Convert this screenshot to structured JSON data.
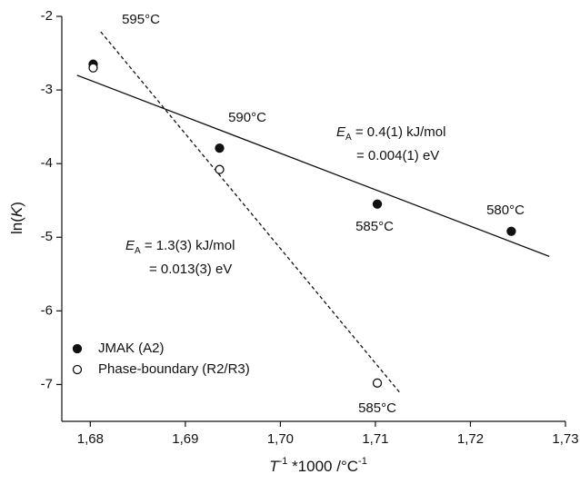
{
  "chart_data": {
    "type": "scatter",
    "xlabel": {
      "symbol": "T",
      "sup": "-1",
      "text": " *1000 /°C",
      "sup2": "-1"
    },
    "ylabel": {
      "pre": "ln(",
      "symbol": "K",
      "post": ")"
    },
    "xlim": [
      1.677,
      1.73
    ],
    "ylim": [
      -7.5,
      -2
    ],
    "xticks": [
      {
        "value": 1.68,
        "label": "1,68"
      },
      {
        "value": 1.69,
        "label": "1,69"
      },
      {
        "value": 1.7,
        "label": "1,70"
      },
      {
        "value": 1.71,
        "label": "1,71"
      },
      {
        "value": 1.72,
        "label": "1,72"
      },
      {
        "value": 1.73,
        "label": "1,73"
      }
    ],
    "yticks": [
      -2,
      -3,
      -4,
      -5,
      -6,
      -7
    ],
    "legend": "lower left",
    "series": [
      {
        "name": "JMAK (A2)",
        "color": "#111111",
        "marker": "filled",
        "x": [
          1.6803,
          1.6936,
          1.7102,
          1.7243
        ],
        "values": [
          -2.65,
          -3.79,
          -4.55,
          -4.92
        ]
      },
      {
        "name": "Phase-boundary (R2/R3)",
        "color": "#111111",
        "marker": "open",
        "x": [
          1.6803,
          1.6936,
          1.7102
        ],
        "values": [
          -2.7,
          -4.08,
          -6.98
        ]
      }
    ],
    "fits": [
      {
        "style": "solid",
        "x": [
          1.6786,
          1.7283
        ],
        "values": [
          -2.8,
          -5.26
        ]
      },
      {
        "style": "dashed",
        "x": [
          1.6811,
          1.7127
        ],
        "values": [
          -2.21,
          -7.13
        ]
      }
    ],
    "point_labels": [
      "595°C",
      "590°C",
      "585°C",
      "580°C",
      "585°C"
    ],
    "annotations": [
      {
        "symbol": "E",
        "sub": "A",
        "line1": " = 0.4(1) kJ/mol",
        "line2": "= 0.004(1) eV"
      },
      {
        "symbol": "E",
        "sub": "A",
        "line1": " = 1.3(3) kJ/mol",
        "line2": "= 0.013(3) eV"
      }
    ]
  }
}
